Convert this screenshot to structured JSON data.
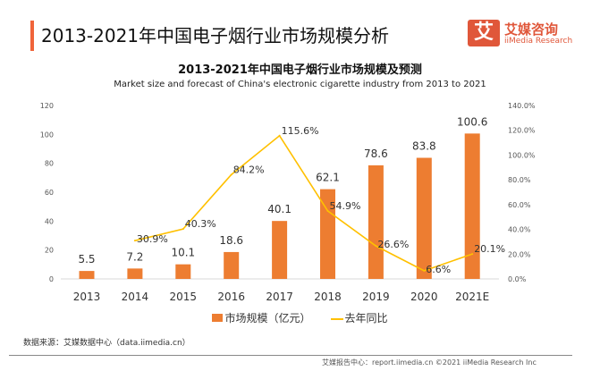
{
  "header": {
    "title": "2013-2021年中国电子烟行业市场规模分析",
    "logo_cn": "艾媒咨询",
    "logo_en": "iiMedia Research",
    "logo_mark": "艾",
    "accent_color": "#f0643a"
  },
  "chart_data": {
    "type": "bar+line",
    "title": "2013-2021年中国电子烟行业市场规模及预测",
    "subtitle": "Market size and forecast of China's electronic cigarette industry from 2013 to 2021",
    "categories": [
      "2013",
      "2014",
      "2015",
      "2016",
      "2017",
      "2018",
      "2019",
      "2020",
      "2021E"
    ],
    "series": [
      {
        "name": "市场规模（亿元）",
        "type": "bar",
        "axis": "left",
        "color": "#ed7d31",
        "values": [
          5.5,
          7.2,
          10.1,
          18.6,
          40.1,
          62.1,
          78.6,
          83.8,
          100.6
        ],
        "labels": [
          "5.5",
          "7.2",
          "10.1",
          "18.6",
          "40.1",
          "62.1",
          "78.6",
          "83.8",
          "100.6"
        ]
      },
      {
        "name": "去年同比",
        "type": "line",
        "axis": "right",
        "color": "#ffc000",
        "values": [
          null,
          30.9,
          40.3,
          84.2,
          115.6,
          54.9,
          26.6,
          6.6,
          20.1
        ],
        "labels": [
          "",
          "30.9%",
          "40.3%",
          "84.2%",
          "115.6%",
          "54.9%",
          "26.6%",
          "6.6%",
          "20.1%"
        ]
      }
    ],
    "ylim": [
      0,
      120
    ],
    "yticks": [
      "0",
      "20",
      "40",
      "60",
      "80",
      "100",
      "120"
    ],
    "y2lim": [
      0,
      140
    ],
    "y2ticks": [
      "0.0%",
      "20.0%",
      "40.0%",
      "60.0%",
      "80.0%",
      "100.0%",
      "120.0%",
      "140.0%"
    ],
    "grid": false,
    "legend": "bottom"
  },
  "source": "数据来源：艾媒数据中心（data.iimedia.cn）",
  "footer": "艾媒报告中心：report.iimedia.cn  ©2021  iiMedia Research  Inc"
}
